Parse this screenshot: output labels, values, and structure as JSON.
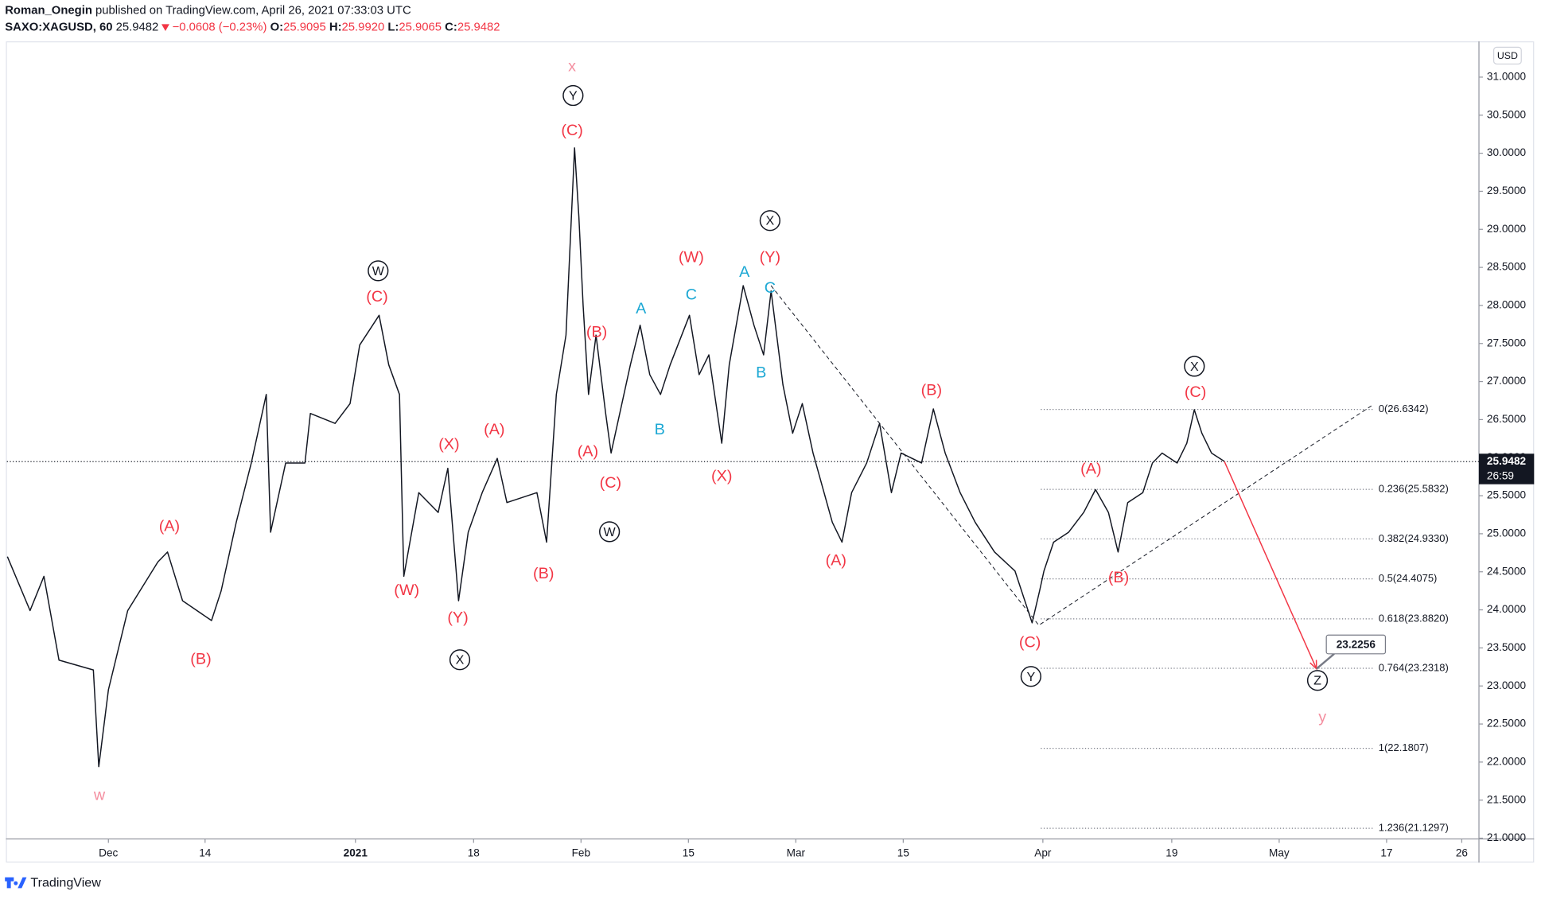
{
  "header": {
    "author": "Roman_Onegin",
    "published": "published on TradingView.com, April 26, 2021 07:33:03 UTC",
    "symbol": "SAXO:XAGUSD, 60",
    "price": "25.9482",
    "change": "−0.0608 (−0.23%)",
    "o_label": "O:",
    "o_value": "25.9095",
    "h_label": "H:",
    "h_value": "25.9920",
    "l_label": "L:",
    "l_value": "25.9065",
    "c_label": "C:",
    "c_value": "25.9482"
  },
  "chart_data": {
    "type": "line",
    "currency": "USD",
    "x": [
      -9.4,
      -7.3,
      -6.0,
      -4.6,
      -1.4,
      -0.9,
      0,
      1.8,
      4.6,
      5.5,
      6.9,
      9.6,
      10.5,
      11.9,
      13.3,
      14.7,
      15.1,
      16.5,
      18.3,
      18.8,
      21.1,
      22.5,
      23.4,
      25.2,
      26.1,
      27.1,
      27.5,
      28.9,
      30.7,
      31.6,
      32.6,
      33.5,
      34.8,
      36.2,
      37.1,
      39.9,
      40.8,
      41.7,
      42.6,
      43.4,
      43.8,
      44.2,
      44.7,
      45.4,
      46.3,
      46.8,
      48.6,
      49.5,
      50.4,
      51.4,
      52.3,
      54.1,
      55.0,
      55.9,
      57.1,
      57.8,
      59.1,
      60.1,
      61.0,
      61.7,
      62.8,
      63.7,
      64.6,
      65.6,
      67.4,
      68.3,
      69.2,
      70.6,
      71.8,
      72.9,
      73.8,
      75.7,
      76.8,
      77.9,
      79.3,
      80.7,
      82.5,
      84.4,
      86.0,
      86.7,
      87.1,
      88.0,
      89.4,
      90.8,
      91.9,
      93.1,
      94.0,
      94.9,
      96.3,
      97.2,
      98.1,
      99.5,
      100.4,
      101.1,
      101.8,
      102.7,
      103.9
    ],
    "series": [
      {
        "name": "SAXO:XAGUSD",
        "color": "#131722",
        "values": [
          24.7,
          23.99,
          24.44,
          23.34,
          23.21,
          21.94,
          22.95,
          23.99,
          24.63,
          24.76,
          24.12,
          23.86,
          24.25,
          25.15,
          25.93,
          26.83,
          25.02,
          25.93,
          25.93,
          26.58,
          26.45,
          26.71,
          27.48,
          27.87,
          27.22,
          26.83,
          24.44,
          25.54,
          25.28,
          25.86,
          24.12,
          25.02,
          25.54,
          25.99,
          25.41,
          25.54,
          24.89,
          26.83,
          27.61,
          30.07,
          29.16,
          28.0,
          26.83,
          27.61,
          26.58,
          26.06,
          27.22,
          27.74,
          27.09,
          26.83,
          27.22,
          27.87,
          27.09,
          27.35,
          26.19,
          27.22,
          28.26,
          27.74,
          27.35,
          28.19,
          26.96,
          26.32,
          26.71,
          26.06,
          25.15,
          24.89,
          25.54,
          25.93,
          26.45,
          25.54,
          26.06,
          25.93,
          26.64,
          26.06,
          25.54,
          25.15,
          24.76,
          24.51,
          23.83,
          24.25,
          24.51,
          24.89,
          25.02,
          25.28,
          25.58,
          25.28,
          24.76,
          25.41,
          25.54,
          25.93,
          26.06,
          25.93,
          26.19,
          26.63,
          26.32,
          26.06,
          25.95
        ]
      }
    ],
    "xlim": [
      -9.45,
      127.6
    ],
    "ylim": [
      20.99,
      31.47
    ],
    "xticks": [
      {
        "value": 0,
        "label": "Dec"
      },
      {
        "value": 9,
        "label": "14"
      },
      {
        "value": 23,
        "label": "2021"
      },
      {
        "value": 34,
        "label": "18"
      },
      {
        "value": 44,
        "label": "Feb"
      },
      {
        "value": 54,
        "label": "15"
      },
      {
        "value": 64,
        "label": "Mar"
      },
      {
        "value": 74,
        "label": "15"
      },
      {
        "value": 87,
        "label": "Apr"
      },
      {
        "value": 99,
        "label": "19"
      },
      {
        "value": 109,
        "label": "May"
      },
      {
        "value": 119,
        "label": "17"
      },
      {
        "value": 126,
        "label": "26"
      }
    ],
    "yticks": [
      {
        "value": 21,
        "label": "21.0000"
      },
      {
        "value": 21.5,
        "label": "21.5000"
      },
      {
        "value": 22,
        "label": "22.0000"
      },
      {
        "value": 22.5,
        "label": "22.5000"
      },
      {
        "value": 23,
        "label": "23.0000"
      },
      {
        "value": 23.5,
        "label": "23.5000"
      },
      {
        "value": 24,
        "label": "24.0000"
      },
      {
        "value": 24.5,
        "label": "24.5000"
      },
      {
        "value": 25,
        "label": "25.0000"
      },
      {
        "value": 25.5,
        "label": "25.5000"
      },
      {
        "value": 26,
        "label": "26.0000"
      },
      {
        "value": 26.5,
        "label": "26.5000"
      },
      {
        "value": 27,
        "label": "27.0000"
      },
      {
        "value": 27.5,
        "label": "27.5000"
      },
      {
        "value": 28,
        "label": "28.0000"
      },
      {
        "value": 28.5,
        "label": "28.5000"
      },
      {
        "value": 29,
        "label": "29.0000"
      },
      {
        "value": 29.5,
        "label": "29.5000"
      },
      {
        "value": 30,
        "label": "30.0000"
      },
      {
        "value": 30.5,
        "label": "30.5000"
      },
      {
        "value": 31,
        "label": "31.0000"
      }
    ],
    "last_price": 25.9482,
    "countdown": "26:59",
    "target": 23.2256,
    "fib": [
      {
        "price": 26.6342,
        "label": "0(26.6342)"
      },
      {
        "price": 25.5832,
        "label": "0.236(25.5832)"
      },
      {
        "price": 24.933,
        "label": "0.382(24.9330)"
      },
      {
        "price": 24.4075,
        "label": "0.5(24.4075)"
      },
      {
        "price": 23.882,
        "label": "0.618(23.8820)"
      },
      {
        "price": 23.2318,
        "label": "0.764(23.2318)"
      },
      {
        "price": 22.1807,
        "label": "1(22.1807)"
      },
      {
        "price": 21.1297,
        "label": "1.236(21.1297)"
      }
    ],
    "annotations": [
      {
        "text": "w",
        "color": "#f48fa0"
      },
      {
        "text": "(A)",
        "color": "#f23645"
      },
      {
        "text": "(B)",
        "color": "#f23645"
      },
      {
        "text": "W",
        "color": "#131722",
        "circled": true
      },
      {
        "text": "(C)",
        "color": "#f23645"
      },
      {
        "text": "(W)",
        "color": "#f23645"
      },
      {
        "text": "(X)",
        "color": "#f23645"
      },
      {
        "text": "(A)",
        "color": "#f23645"
      },
      {
        "text": "(Y)",
        "color": "#f23645"
      },
      {
        "text": "X",
        "color": "#131722",
        "circled": true
      },
      {
        "text": "(B)",
        "color": "#f23645"
      },
      {
        "text": "x",
        "color": "#f48fa0"
      },
      {
        "text": "Y",
        "color": "#131722",
        "circled": true
      },
      {
        "text": "(C)",
        "color": "#f23645"
      },
      {
        "text": "(B)",
        "color": "#f23645"
      },
      {
        "text": "(A)",
        "color": "#f23645"
      },
      {
        "text": "(C)",
        "color": "#f23645"
      },
      {
        "text": "W",
        "color": "#131722",
        "circled": true
      },
      {
        "text": "A",
        "color": "#1ca8d4"
      },
      {
        "text": "B",
        "color": "#1ca8d4"
      },
      {
        "text": "C",
        "color": "#1ca8d4"
      },
      {
        "text": "(W)",
        "color": "#f23645"
      },
      {
        "text": "A",
        "color": "#1ca8d4"
      },
      {
        "text": "(Y)",
        "color": "#f23645"
      },
      {
        "text": "X",
        "color": "#131722",
        "circled": true
      },
      {
        "text": "C",
        "color": "#1ca8d4"
      },
      {
        "text": "B",
        "color": "#1ca8d4"
      },
      {
        "text": "(X)",
        "color": "#f23645"
      },
      {
        "text": "(A)",
        "color": "#f23645"
      },
      {
        "text": "(B)",
        "color": "#f23645"
      },
      {
        "text": "(C)",
        "color": "#f23645"
      },
      {
        "text": "Y",
        "color": "#131722",
        "circled": true
      },
      {
        "text": "(A)",
        "color": "#f23645"
      },
      {
        "text": "(B)",
        "color": "#f23645"
      },
      {
        "text": "X",
        "color": "#131722",
        "circled": true
      },
      {
        "text": "(C)",
        "color": "#f23645"
      },
      {
        "text": "Z",
        "color": "#131722",
        "circled": true
      },
      {
        "text": "y",
        "color": "#f48fa0"
      }
    ]
  },
  "footer": {
    "brand": "TradingView"
  }
}
